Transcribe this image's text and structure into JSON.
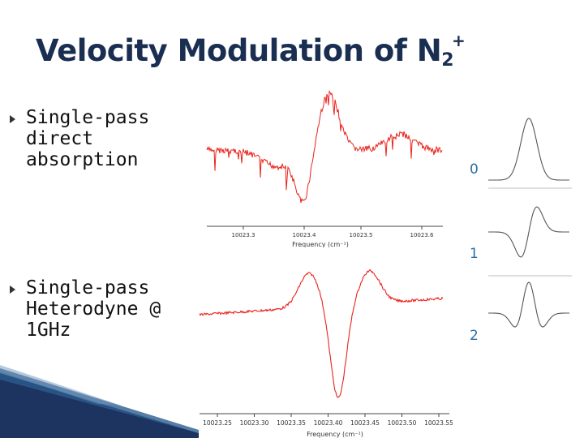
{
  "title": {
    "main": "Velocity Modulation of N",
    "sub": "2",
    "sup": "+"
  },
  "bullets": [
    {
      "text": "Single-pass\ndirect\nabsorption"
    },
    {
      "text": "Single-pass\nHeterodyne @\n1GHz"
    }
  ],
  "plot_top": {
    "x_ticks": [
      "10023.3",
      "10023.4",
      "10023.5",
      "10023.6"
    ],
    "x_label": "Frequency (cm⁻¹)"
  },
  "plot_bottom": {
    "x_ticks": [
      "10023.25",
      "10023.30",
      "10023.35",
      "10023.40",
      "10023.45",
      "10023.50",
      "10023.55"
    ],
    "x_label": "Frequency (cm⁻¹)"
  },
  "derivatives": [
    {
      "label": "0"
    },
    {
      "label": "1"
    },
    {
      "label": "2"
    }
  ],
  "colors": {
    "title": "#1a2e52",
    "trace": "#e8231c",
    "label": "#2d6fa3",
    "derivative": "#555555"
  }
}
